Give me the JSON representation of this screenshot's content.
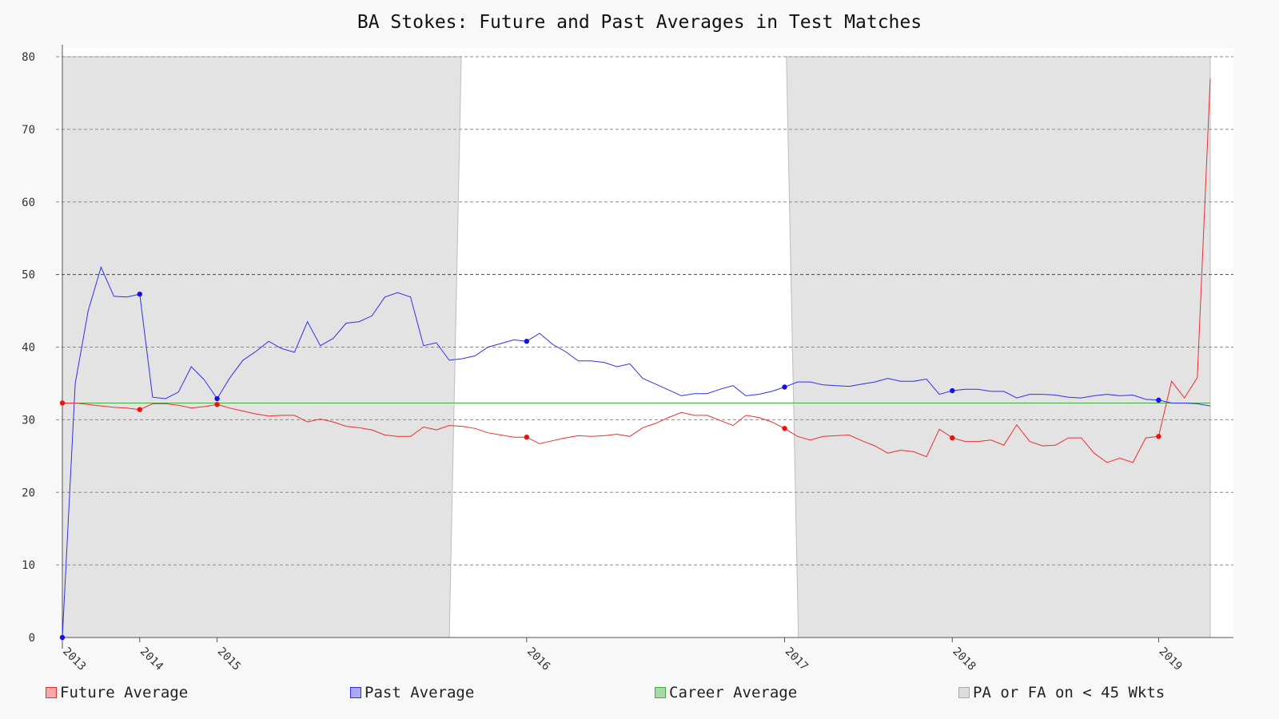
{
  "chart_data": {
    "type": "line",
    "title": "BA Stokes: Future and Past Averages in Test Matches",
    "xlabel": "",
    "ylabel": "",
    "ylim": [
      0,
      80
    ],
    "yticks": [
      0,
      10,
      20,
      30,
      40,
      50,
      60,
      70,
      80
    ],
    "x_tick_labels": [
      "2013",
      "2014",
      "2015",
      "2016",
      "2017",
      "2018",
      "2019"
    ],
    "x_tick_match_index": [
      0,
      6,
      12,
      36,
      56,
      69,
      85
    ],
    "grid": "horizontal dashed",
    "career_average": 32.3,
    "series": [
      {
        "name": "Future Average",
        "color": "#e83030",
        "values": [
          32.3,
          32.3,
          32.1,
          31.9,
          31.7,
          31.6,
          31.4,
          32.2,
          32.2,
          32.0,
          31.6,
          31.8,
          32.1,
          31.6,
          31.2,
          30.8,
          30.5,
          30.6,
          30.6,
          29.7,
          30.1,
          29.7,
          29.1,
          28.9,
          28.6,
          27.9,
          27.7,
          27.7,
          29.0,
          28.6,
          29.2,
          29.1,
          28.8,
          28.2,
          27.9,
          27.6,
          27.6,
          26.7,
          27.1,
          27.5,
          27.8,
          27.7,
          27.8,
          28.0,
          27.7,
          28.9,
          29.5,
          30.3,
          31.0,
          30.6,
          30.6,
          29.9,
          29.2,
          30.6,
          30.3,
          29.7,
          28.8,
          27.7,
          27.2,
          27.7,
          27.8,
          27.9,
          27.1,
          26.4,
          25.4,
          25.8,
          25.6,
          24.9,
          28.7,
          27.5,
          27.0,
          27.0,
          27.2,
          26.5,
          29.3,
          27.0,
          26.4,
          26.5,
          27.5,
          27.5,
          25.4,
          24.1,
          24.7,
          24.1,
          27.5,
          27.7,
          35.3,
          33.0,
          35.8,
          77.0
        ]
      },
      {
        "name": "Past Average",
        "color": "#3030e8",
        "values": [
          0,
          35.0,
          45.0,
          51.0,
          47.0,
          46.9,
          47.3,
          33.1,
          32.9,
          33.8,
          37.3,
          35.5,
          32.9,
          35.8,
          38.2,
          39.4,
          40.8,
          39.8,
          39.3,
          43.5,
          40.2,
          41.2,
          43.3,
          43.5,
          44.3,
          46.9,
          47.5,
          46.9,
          40.2,
          40.6,
          38.2,
          38.4,
          38.8,
          40.0,
          40.5,
          41.0,
          40.8,
          41.9,
          40.4,
          39.4,
          38.1,
          38.1,
          37.9,
          37.3,
          37.7,
          35.7,
          34.9,
          34.1,
          33.3,
          33.6,
          33.6,
          34.2,
          34.7,
          33.3,
          33.5,
          33.9,
          34.5,
          35.2,
          35.2,
          34.8,
          34.7,
          34.6,
          34.9,
          35.2,
          35.7,
          35.3,
          35.3,
          35.6,
          33.5,
          34.0,
          34.2,
          34.2,
          33.9,
          33.9,
          33.0,
          33.5,
          33.5,
          33.4,
          33.1,
          33.0,
          33.3,
          33.5,
          33.3,
          33.4,
          32.8,
          32.7,
          32.3,
          32.3,
          32.2,
          31.9
        ]
      },
      {
        "name": "Career Average",
        "color": "#44aa44",
        "values": []
      },
      {
        "name": "PA or FA on < 45 Wkts",
        "color": "#dddddd",
        "values": []
      }
    ],
    "marker_indices": [
      0,
      6,
      12,
      36,
      56,
      69,
      85
    ],
    "shaded_regions_match_index": [
      [
        0,
        30
      ],
      [
        58,
        89
      ]
    ],
    "legend_position": "bottom"
  }
}
